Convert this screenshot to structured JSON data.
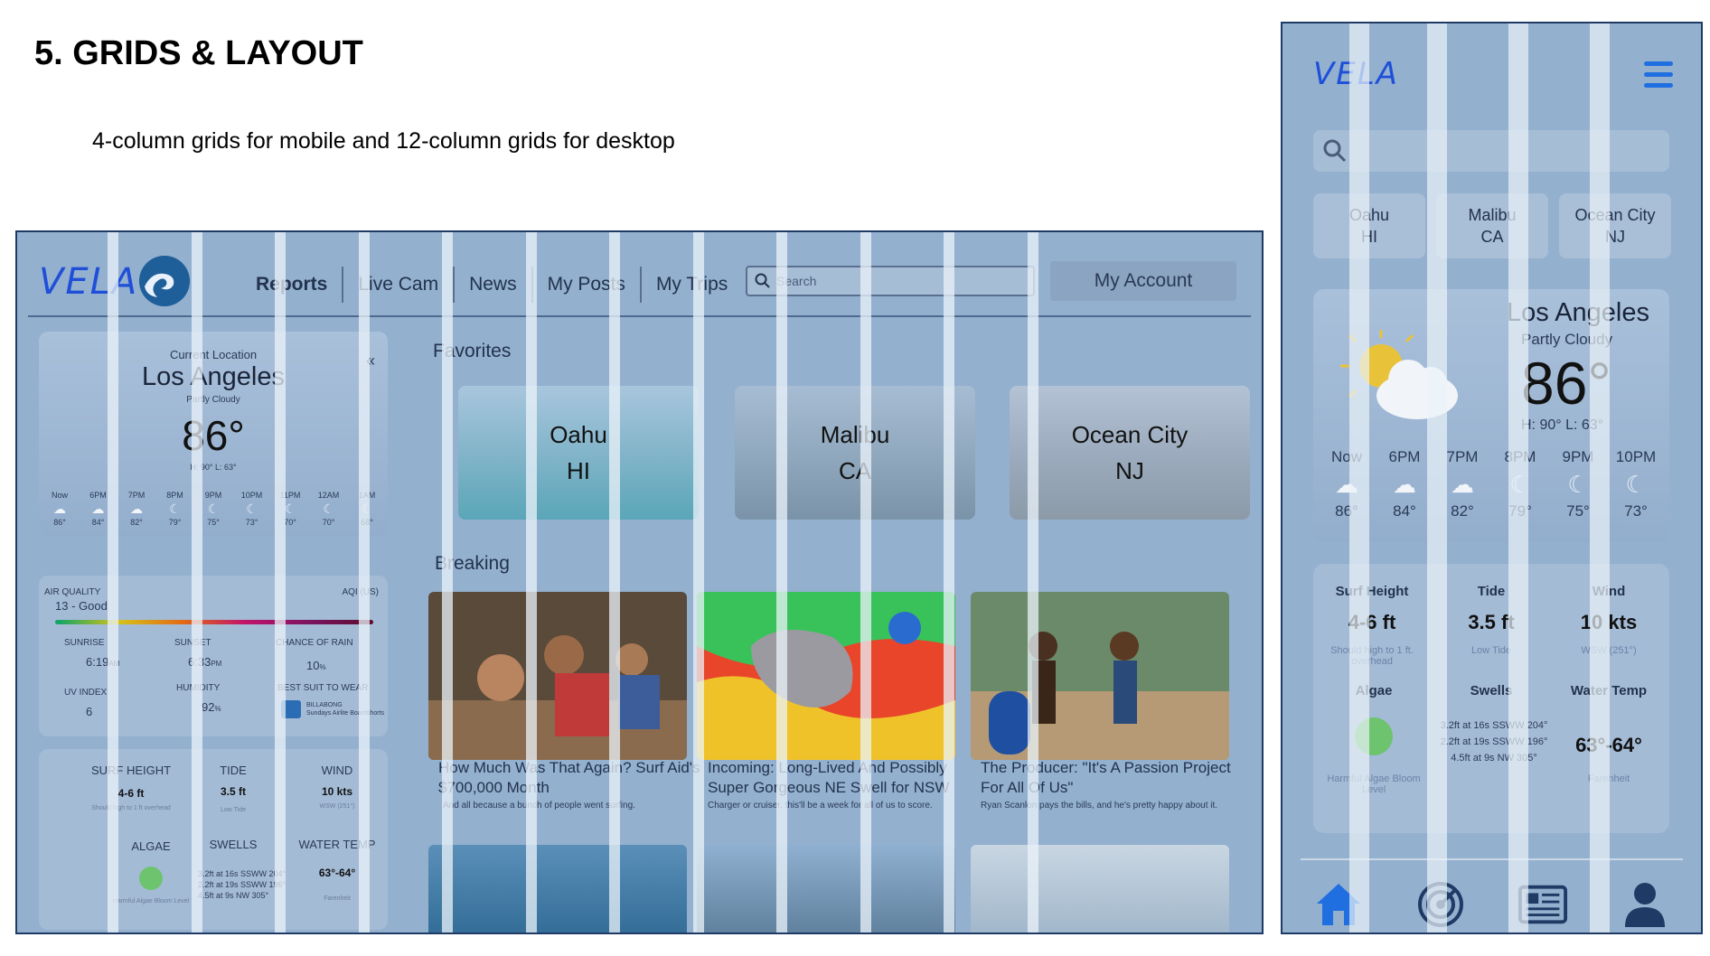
{
  "heading": {
    "title": "5. GRIDS & LAYOUT",
    "subtitle": "4-column grids for mobile and 12-column grids for desktop"
  },
  "desktop": {
    "logo": "VELA",
    "nav": [
      "Reports",
      "Live Cam",
      "News",
      "My Posts",
      "My Trips"
    ],
    "active_nav": "Reports",
    "search_placeholder": "Search",
    "account_button": "My Account",
    "weather": {
      "current_location_label": "Current Location",
      "city": "Los Angeles",
      "condition": "Partly Cloudy",
      "temp": "86°",
      "high_low": "H: 90°  L: 63°",
      "hours": [
        {
          "t": "Now",
          "v": "86°",
          "icon": "sun-cloud-icon"
        },
        {
          "t": "6PM",
          "v": "84°",
          "icon": "sun-cloud-icon"
        },
        {
          "t": "7PM",
          "v": "82°",
          "icon": "sun-cloud-icon"
        },
        {
          "t": "8PM",
          "v": "79°",
          "icon": "moon-icon"
        },
        {
          "t": "9PM",
          "v": "75°",
          "icon": "moon-icon"
        },
        {
          "t": "10PM",
          "v": "73°",
          "icon": "moon-icon"
        },
        {
          "t": "11PM",
          "v": "70°",
          "icon": "moon-icon"
        },
        {
          "t": "12AM",
          "v": "70°",
          "icon": "moon-icon"
        },
        {
          "t": "1AM",
          "v": "68°",
          "icon": "moon-icon"
        }
      ]
    },
    "air": {
      "aq_label": "AIR QUALITY",
      "aq_value": "13 - Good",
      "aqi_label": "AQI (US)",
      "sunrise_label": "SUNRISE",
      "sunrise": "6:19",
      "sunrise_unit": "AM",
      "sunset_label": "SUNSET",
      "sunset": "6:33",
      "sunset_unit": "PM",
      "rain_label": "CHANCE OF RAIN",
      "rain": "10",
      "rain_unit": "%",
      "uv_label": "UV INDEX",
      "uv": "6",
      "humidity_label": "HUMIDITY",
      "humidity": "92",
      "humidity_unit": "%",
      "suit_label": "BEST SUIT TO WEAR",
      "suit_brand": "BILLABONG",
      "suit_name": "Sundays Airlite Boardshorts"
    },
    "surf": {
      "height_label": "SURF HEIGHT",
      "height": "4-6 ft",
      "height_note": "Should high to 1 ft overhead",
      "tide_label": "TIDE",
      "tide": "3.5 ft",
      "tide_note": "Low Tide",
      "wind_label": "WIND",
      "wind": "10 kts",
      "wind_note": "WSW (251°)",
      "algae_label": "ALGAE",
      "algae_note": "Harmful Algae Bloom Level",
      "swells_label": "SWELLS",
      "swells": [
        "3.2ft at 16s SSWW 204°",
        "2.2ft at 19s SSWW 196°",
        "4.5ft at 9s NW 305°"
      ],
      "water_label": "WATER TEMP",
      "water": "63°-64°",
      "water_note": "Farenheit"
    },
    "favorites_heading": "Favorites",
    "favorites": [
      {
        "name": "Oahu",
        "state": "HI"
      },
      {
        "name": "Malibu",
        "state": "CA"
      },
      {
        "name": "Ocean City",
        "state": "NJ"
      }
    ],
    "breaking_heading": "Breaking",
    "stories": [
      {
        "title": "How Much Was That Again? Surf Aid's $700,000 Month",
        "desc": "And all because a bunch of people went surfing."
      },
      {
        "title": "Incoming: Long-Lived And Possibly Super Gorgeous NE Swell for NSW",
        "desc": "Charger or cruiser, this'll be a week for all of us to score."
      },
      {
        "title": "The Producer: \"It's A Passion Project For All Of Us\"",
        "desc": "Ryan Scanlon pays the bills, and he's pretty happy about it."
      }
    ]
  },
  "mobile": {
    "logo": "VELA",
    "favorites": [
      {
        "name": "Oahu",
        "state": "HI"
      },
      {
        "name": "Malibu",
        "state": "CA"
      },
      {
        "name": "Ocean City",
        "state": "NJ"
      }
    ],
    "weather": {
      "city": "Los Angeles",
      "condition": "Partly Cloudy",
      "temp": "86°",
      "high_low": "H: 90°  L: 63°",
      "hours": [
        {
          "t": "Now",
          "v": "86°",
          "icon": "sun-cloud-icon"
        },
        {
          "t": "6PM",
          "v": "84°",
          "icon": "sun-cloud-icon"
        },
        {
          "t": "7PM",
          "v": "82°",
          "icon": "sun-cloud-icon"
        },
        {
          "t": "8PM",
          "v": "79°",
          "icon": "moon-icon"
        },
        {
          "t": "9PM",
          "v": "75°",
          "icon": "moon-icon"
        },
        {
          "t": "10PM",
          "v": "73°",
          "icon": "moon-icon"
        }
      ]
    },
    "surf": {
      "height_label": "Surf Height",
      "height": "4-6 ft",
      "height_note": "Should high to 1 ft. overhead",
      "tide_label": "Tide",
      "tide": "3.5 ft",
      "tide_note": "Low Tide",
      "wind_label": "Wind",
      "wind": "10 kts",
      "wind_note": "WSW (251°)",
      "algae_label": "Algae",
      "algae_note": "Harmful Algae Bloom Level",
      "swells_label": "Swells",
      "swells": [
        "3.2ft at 16s SSWW 204°",
        "2.2ft at 19s SSWW 196°",
        "4.5ft at 9s NW 305°"
      ],
      "water_label": "Water Temp",
      "water": "63°-64°",
      "water_note": "Farenheit"
    },
    "bottom_nav": [
      "home-icon",
      "radar-icon",
      "news-icon",
      "profile-icon"
    ]
  },
  "colors": {
    "accent": "#1f6fe0",
    "frame": "#1f3a64",
    "algae": "#6ec36e"
  }
}
